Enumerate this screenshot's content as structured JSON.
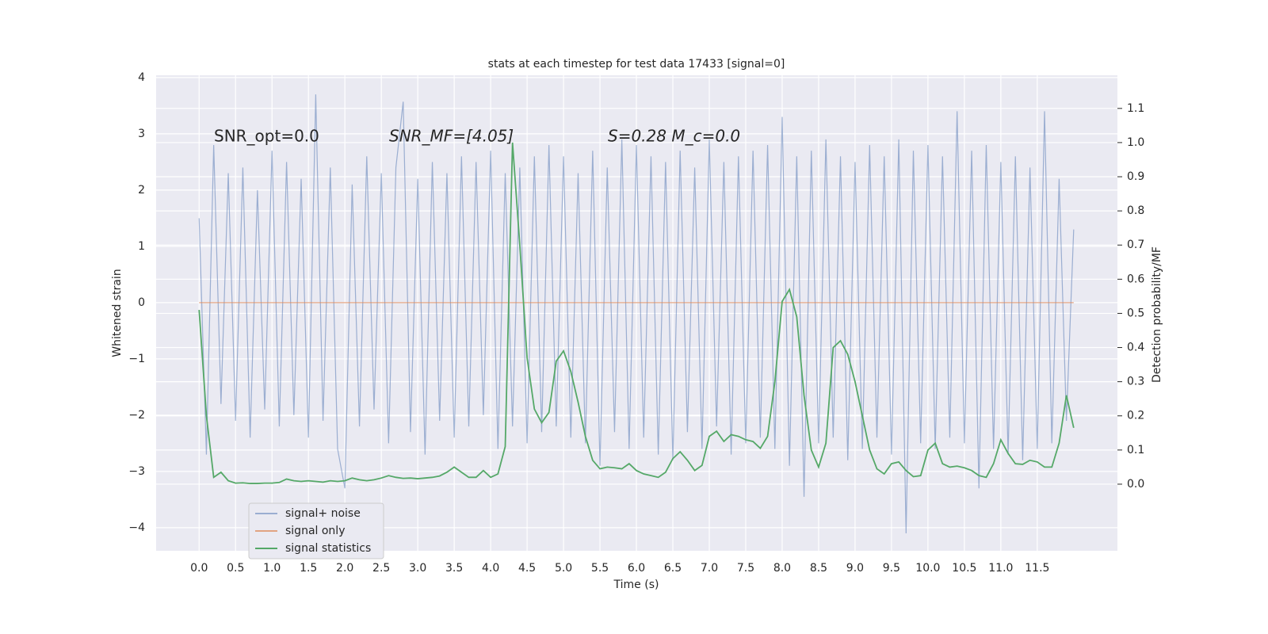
{
  "chart_data": {
    "type": "line",
    "title": "stats at each timestep for test data 17433 [signal=0]",
    "xlabel": "Time (s)",
    "ylabel": "Whitened strain",
    "y2label": "Detection probability/MF",
    "annotations": [
      "SNR_opt=0.0",
      "SNR_MF=[4.05]",
      "S=0.28   M_c=0.0"
    ],
    "x": [
      0,
      0.1,
      0.2,
      0.3,
      0.4,
      0.5,
      0.6,
      0.7,
      0.8,
      0.9,
      1,
      1.1,
      1.2,
      1.3,
      1.4,
      1.5,
      1.6,
      1.7,
      1.8,
      1.9,
      2,
      2.1,
      2.2,
      2.3,
      2.4,
      2.5,
      2.6,
      2.7,
      2.8,
      2.9,
      3,
      3.1,
      3.2,
      3.3,
      3.4,
      3.5,
      3.6,
      3.7,
      3.8,
      3.9,
      4,
      4.1,
      4.2,
      4.3,
      4.4,
      4.5,
      4.6,
      4.7,
      4.8,
      4.9,
      5,
      5.1,
      5.2,
      5.3,
      5.4,
      5.5,
      5.6,
      5.7,
      5.8,
      5.9,
      6,
      6.1,
      6.2,
      6.3,
      6.4,
      6.5,
      6.6,
      6.7,
      6.8,
      6.9,
      7,
      7.1,
      7.2,
      7.3,
      7.4,
      7.5,
      7.6,
      7.7,
      7.8,
      7.9,
      8,
      8.1,
      8.2,
      8.3,
      8.4,
      8.5,
      8.6,
      8.7,
      8.8,
      8.9,
      9,
      9.1,
      9.2,
      9.3,
      9.4,
      9.5,
      9.6,
      9.7,
      9.8,
      9.9,
      10,
      10.1,
      10.2,
      10.3,
      10.4,
      10.5,
      10.6,
      10.7,
      10.8,
      10.9,
      11,
      11.1,
      11.2,
      11.3,
      11.4,
      11.5,
      11.6,
      11.7,
      11.8,
      11.9,
      12
    ],
    "series": [
      {
        "name": "signal+ noise",
        "color": "#4c72b0",
        "alpha": 0.5,
        "values": [
          1.5,
          -2.7,
          2.8,
          -1.8,
          2.3,
          -2.1,
          2.4,
          -2.4,
          2.0,
          -1.9,
          2.7,
          -2.2,
          2.5,
          -2.0,
          2.2,
          -2.4,
          3.7,
          -2.1,
          2.4,
          -2.6,
          -3.3,
          2.1,
          -2.2,
          2.6,
          -1.9,
          2.3,
          -2.5,
          2.4,
          3.57,
          -2.3,
          2.2,
          -2.7,
          2.5,
          -2.1,
          2.3,
          -2.4,
          2.6,
          -2.2,
          2.5,
          -2.0,
          2.7,
          -2.6,
          2.3,
          -2.2,
          2.4,
          -2.5,
          2.6,
          -2.3,
          2.8,
          -2.2,
          2.6,
          -2.4,
          2.3,
          -2.5,
          2.7,
          -2.9,
          2.4,
          -2.3,
          2.9,
          -2.6,
          2.8,
          -2.4,
          2.6,
          -2.7,
          2.5,
          -2.8,
          2.7,
          -2.3,
          2.4,
          -2.6,
          2.9,
          -2.2,
          2.5,
          -2.7,
          2.6,
          -2.5,
          2.7,
          -2.4,
          2.8,
          -2.6,
          3.3,
          -2.9,
          2.6,
          -3.45,
          2.7,
          -2.5,
          2.9,
          -2.4,
          2.6,
          -2.8,
          2.5,
          -2.6,
          2.8,
          -2.4,
          2.6,
          -2.7,
          2.9,
          -4.1,
          2.7,
          -2.5,
          2.8,
          -2.6,
          2.6,
          -2.4,
          3.4,
          -2.5,
          2.7,
          -3.3,
          2.8,
          -2.6,
          2.5,
          -2.7,
          2.6,
          -2.8,
          2.4,
          -2.6,
          3.4,
          -2.5,
          2.2,
          -2.1,
          1.3
        ]
      },
      {
        "name": "signal only",
        "color": "#dd8452",
        "alpha": 0.7,
        "values": [
          0,
          0,
          0,
          0,
          0,
          0,
          0,
          0,
          0,
          0,
          0,
          0,
          0,
          0,
          0,
          0,
          0,
          0,
          0,
          0,
          0,
          0,
          0,
          0,
          0,
          0,
          0,
          0,
          0,
          0,
          0,
          0,
          0,
          0,
          0,
          0,
          0,
          0,
          0,
          0,
          0,
          0,
          0,
          0,
          0,
          0,
          0,
          0,
          0,
          0,
          0,
          0,
          0,
          0,
          0,
          0,
          0,
          0,
          0,
          0,
          0,
          0,
          0,
          0,
          0,
          0,
          0,
          0,
          0,
          0,
          0,
          0,
          0,
          0,
          0,
          0,
          0,
          0,
          0,
          0,
          0,
          0,
          0,
          0,
          0,
          0,
          0,
          0,
          0,
          0,
          0,
          0,
          0,
          0,
          0,
          0,
          0,
          0,
          0,
          0,
          0,
          0,
          0,
          0,
          0,
          0,
          0,
          0,
          0,
          0,
          0,
          0,
          0,
          0,
          0,
          0,
          0,
          0,
          0,
          0,
          0
        ]
      },
      {
        "name": "signal statistics",
        "color": "#55a868",
        "alpha": 1,
        "axis": "y2",
        "values": [
          0.51,
          0.2,
          0.02,
          0.035,
          0.01,
          0.003,
          0.004,
          0.002,
          0.002,
          0.003,
          0.003,
          0.005,
          0.015,
          0.01,
          0.008,
          0.01,
          0.008,
          0.006,
          0.01,
          0.008,
          0.01,
          0.018,
          0.013,
          0.01,
          0.013,
          0.018,
          0.025,
          0.02,
          0.017,
          0.018,
          0.016,
          0.018,
          0.02,
          0.024,
          0.035,
          0.05,
          0.035,
          0.02,
          0.02,
          0.04,
          0.02,
          0.03,
          0.11,
          1.0,
          0.7,
          0.37,
          0.22,
          0.18,
          0.21,
          0.36,
          0.39,
          0.33,
          0.24,
          0.14,
          0.07,
          0.045,
          0.05,
          0.048,
          0.045,
          0.06,
          0.04,
          0.03,
          0.025,
          0.02,
          0.035,
          0.075,
          0.095,
          0.07,
          0.04,
          0.055,
          0.14,
          0.155,
          0.125,
          0.145,
          0.14,
          0.13,
          0.125,
          0.105,
          0.14,
          0.3,
          0.535,
          0.57,
          0.49,
          0.26,
          0.1,
          0.05,
          0.12,
          0.4,
          0.42,
          0.38,
          0.3,
          0.2,
          0.1,
          0.045,
          0.03,
          0.06,
          0.065,
          0.04,
          0.022,
          0.025,
          0.1,
          0.12,
          0.06,
          0.05,
          0.053,
          0.048,
          0.04,
          0.025,
          0.02,
          0.06,
          0.13,
          0.09,
          0.06,
          0.058,
          0.07,
          0.065,
          0.05,
          0.05,
          0.12,
          0.26,
          0.165
        ]
      }
    ],
    "xlim": [
      -0.59,
      12.6
    ],
    "xticks": [
      {
        "value": 0,
        "label": "0.0"
      },
      0.5,
      {
        "value": 1,
        "label": "1.0"
      },
      1.5,
      {
        "value": 2,
        "label": "2.0"
      },
      2.5,
      {
        "value": 3,
        "label": "3.0"
      },
      3.5,
      {
        "value": 4,
        "label": "4.0"
      },
      4.5,
      {
        "value": 5,
        "label": "5.0"
      },
      5.5,
      {
        "value": 6,
        "label": "6.0"
      },
      6.5,
      {
        "value": 7,
        "label": "7.0"
      },
      7.5,
      {
        "value": 8,
        "label": "8.0"
      },
      8.5,
      {
        "value": 9,
        "label": "9.0"
      },
      9.5,
      {
        "value": 10,
        "label": "10.0"
      },
      10.5,
      {
        "value": 11,
        "label": "11.0"
      },
      11.5
    ],
    "ylim": [
      -4.41,
      4.04
    ],
    "yticks": [
      {
        "value": -4,
        "label": "−4"
      },
      {
        "value": -3,
        "label": "−3"
      },
      {
        "value": -2,
        "label": "−2"
      },
      {
        "value": -1,
        "label": "−1"
      },
      0,
      1,
      2,
      3,
      4
    ],
    "y2lim": [
      -0.195,
      1.197
    ],
    "y2ticks": [
      {
        "value": 0,
        "label": "0.0"
      },
      0.1,
      0.2,
      0.3,
      0.4,
      0.5,
      0.6,
      0.7,
      0.8,
      0.9,
      {
        "value": 1,
        "label": "1.0"
      },
      1.1
    ],
    "grid": true,
    "legend": "lower left",
    "background": "#eaeaf2"
  }
}
